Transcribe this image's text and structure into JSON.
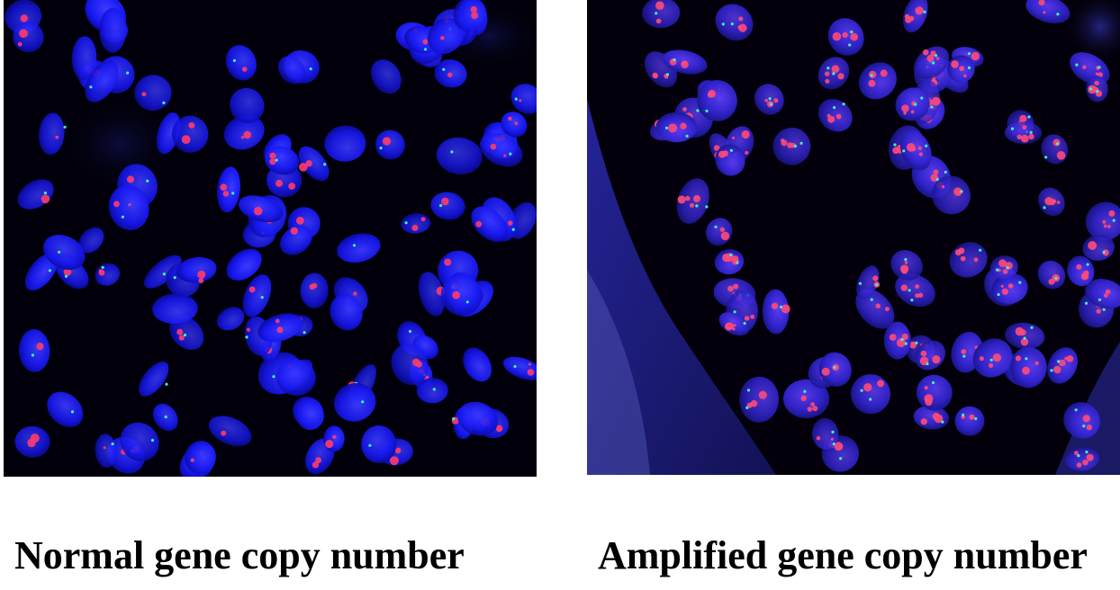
{
  "panels": [
    {
      "caption": "Normal gene copy number",
      "nucleus_color": "#1a1aff",
      "signal_colors": [
        "#ff3b6b",
        "#3ff0c8"
      ]
    },
    {
      "caption": "Amplified gene copy number",
      "nucleus_color": "#3a2bd6",
      "signal_colors": [
        "#ff4a78",
        "#3ff0c8"
      ]
    }
  ]
}
